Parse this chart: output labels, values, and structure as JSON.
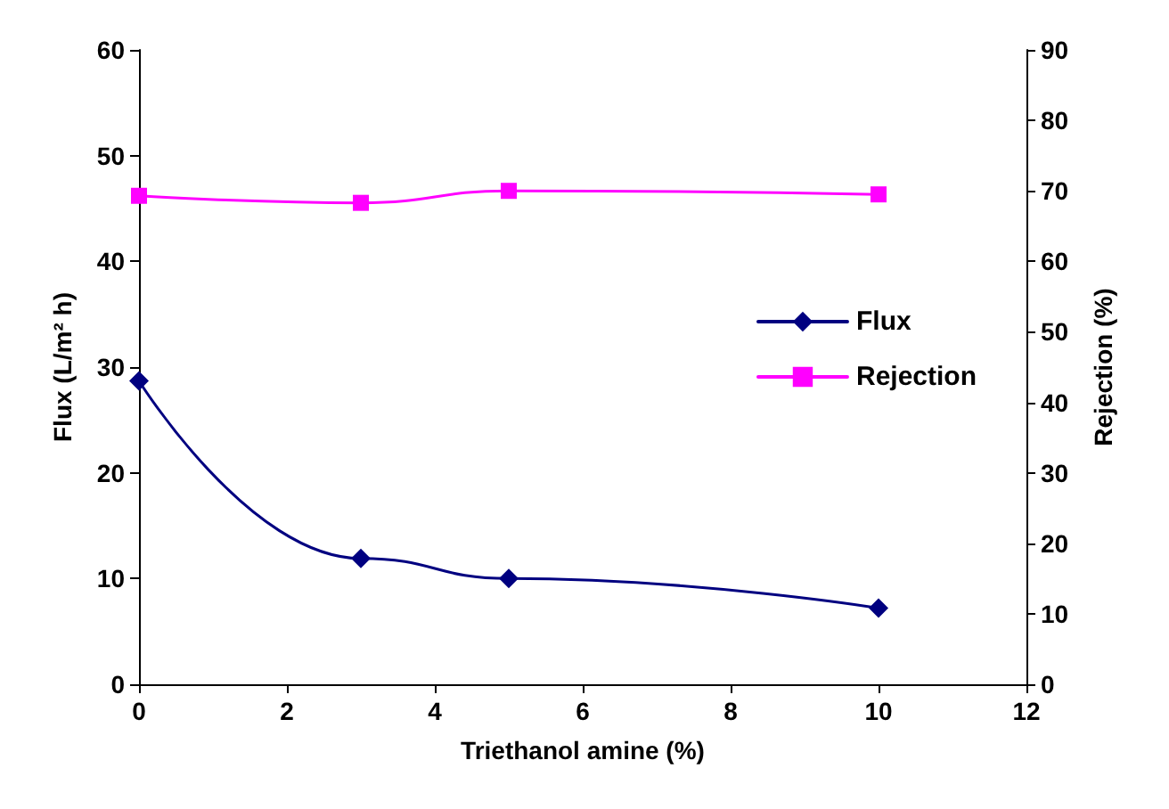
{
  "chart_data": {
    "type": "line",
    "xlabel": "Triethanol amine (%)",
    "ylabel": "Flux (L/m² h)",
    "y2label": "Rejection (%)",
    "x": [
      0,
      3,
      5,
      10
    ],
    "series": [
      {
        "name": "Flux",
        "color": "#000080",
        "values": [
          28.7,
          11.9,
          10,
          7.2
        ],
        "marker": "diamond"
      },
      {
        "name": "Rejection",
        "color": "#ff00ff",
        "values": [
          69.3,
          68.3,
          70,
          69.5
        ],
        "marker": "square",
        "axis": "y2"
      }
    ],
    "xlim": [
      0,
      12
    ],
    "xticks": [
      0,
      2,
      4,
      6,
      8,
      10,
      12
    ],
    "ylim": [
      0,
      60
    ],
    "yticks": [
      0,
      10,
      20,
      30,
      40,
      50,
      60
    ],
    "y2lim": [
      0,
      90
    ],
    "y2ticks": [
      0,
      10,
      20,
      30,
      40,
      50,
      60,
      70,
      80,
      90
    ],
    "grid": false,
    "legend": "right",
    "line_style": "solid"
  }
}
